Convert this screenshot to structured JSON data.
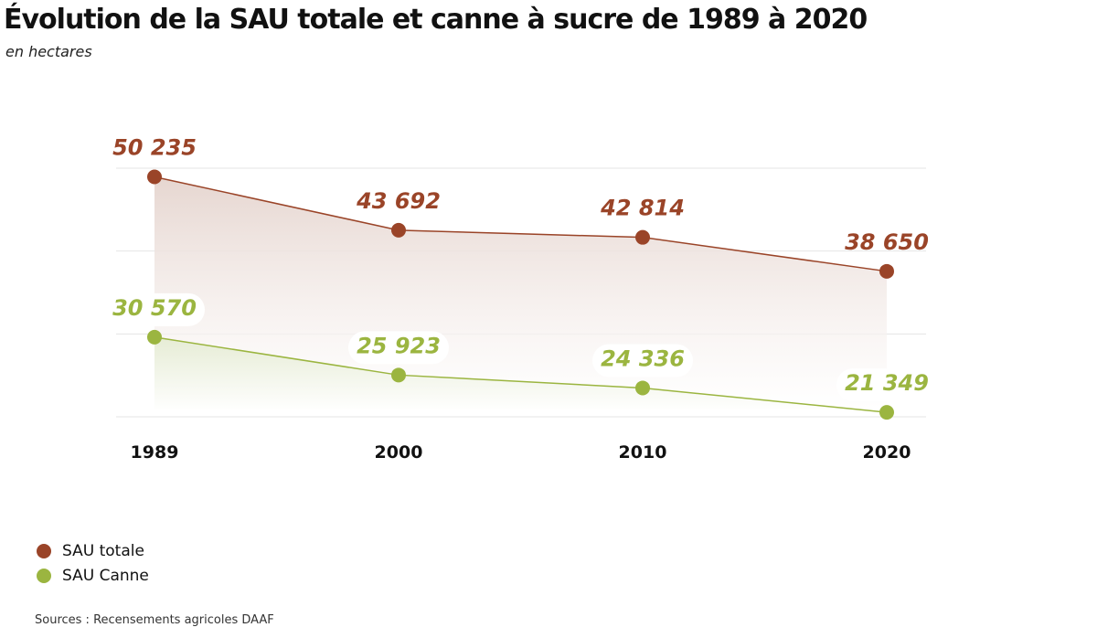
{
  "title": "Évolution de la SAU totale et canne à sucre de 1989 à 2020",
  "subtitle": "en hectares",
  "source": "Sources : Recensements agricoles DAAF",
  "chart_data": {
    "type": "area",
    "title": "Évolution de la SAU totale et canne à sucre de 1989 à 2020",
    "subtitle": "en hectares",
    "xlabel": "",
    "ylabel": "",
    "categories": [
      "1989",
      "2000",
      "2010",
      "2020"
    ],
    "ylim": [
      20800,
      51300
    ],
    "grid": true,
    "legend_position": "bottom-left",
    "series": [
      {
        "name": "SAU totale",
        "color": "#9a4428",
        "values": [
          50235,
          43692,
          42814,
          38650
        ],
        "labels": [
          "50 235",
          "43 692",
          "42 814",
          "38 650"
        ]
      },
      {
        "name": "SAU Canne",
        "color": "#9bb540",
        "values": [
          30570,
          25923,
          24336,
          21349
        ],
        "labels": [
          "30 570",
          "25 923",
          "24 336",
          "21 349"
        ]
      }
    ]
  }
}
